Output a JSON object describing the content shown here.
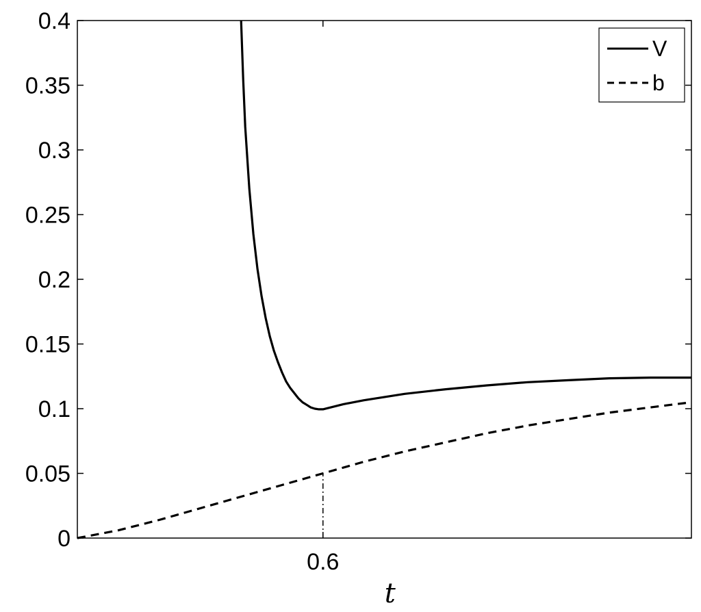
{
  "chart_data": {
    "type": "line",
    "title": "",
    "xlabel": "t",
    "ylabel": "",
    "xlim": [
      0,
      1.5
    ],
    "ylim": [
      0,
      0.4
    ],
    "x_ticks": [
      0.6
    ],
    "x_tick_labels": [
      "0.6"
    ],
    "y_ticks": [
      0,
      0.05,
      0.1,
      0.15,
      0.2,
      0.25,
      0.3,
      0.35,
      0.4
    ],
    "y_tick_labels": [
      "0",
      "0.05",
      "0.1",
      "0.15",
      "0.2",
      "0.25",
      "0.3",
      "0.35",
      "0.4"
    ],
    "grid": false,
    "legend_position": "top-right",
    "series": [
      {
        "name": "V",
        "style": "solid",
        "color": "#000000",
        "x": [
          0.4,
          0.405,
          0.41,
          0.42,
          0.43,
          0.44,
          0.45,
          0.46,
          0.47,
          0.48,
          0.49,
          0.5,
          0.51,
          0.52,
          0.53,
          0.54,
          0.55,
          0.56,
          0.57,
          0.58,
          0.59,
          0.6,
          0.65,
          0.7,
          0.8,
          0.9,
          1.0,
          1.1,
          1.2,
          1.3,
          1.4,
          1.5
        ],
        "y": [
          0.4,
          0.355,
          0.318,
          0.27,
          0.235,
          0.208,
          0.187,
          0.17,
          0.156,
          0.145,
          0.136,
          0.128,
          0.121,
          0.116,
          0.112,
          0.108,
          0.105,
          0.103,
          0.101,
          0.1,
          0.0995,
          0.0995,
          0.1035,
          0.1065,
          0.1115,
          0.115,
          0.118,
          0.1205,
          0.122,
          0.1235,
          0.124,
          0.124
        ]
      },
      {
        "name": "b",
        "style": "dashed",
        "color": "#000000",
        "x": [
          0,
          0.1,
          0.2,
          0.3,
          0.4,
          0.5,
          0.6,
          0.7,
          0.8,
          0.9,
          1.0,
          1.1,
          1.2,
          1.3,
          1.4,
          1.5
        ],
        "y": [
          0,
          0.006,
          0.014,
          0.023,
          0.032,
          0.041,
          0.05,
          0.059,
          0.067,
          0.074,
          0.081,
          0.087,
          0.092,
          0.097,
          0.101,
          0.105
        ]
      }
    ],
    "annotations": [
      {
        "type": "vertical-dashdot",
        "x": 0.6,
        "y_from": 0,
        "y_to": 0.05
      }
    ]
  }
}
